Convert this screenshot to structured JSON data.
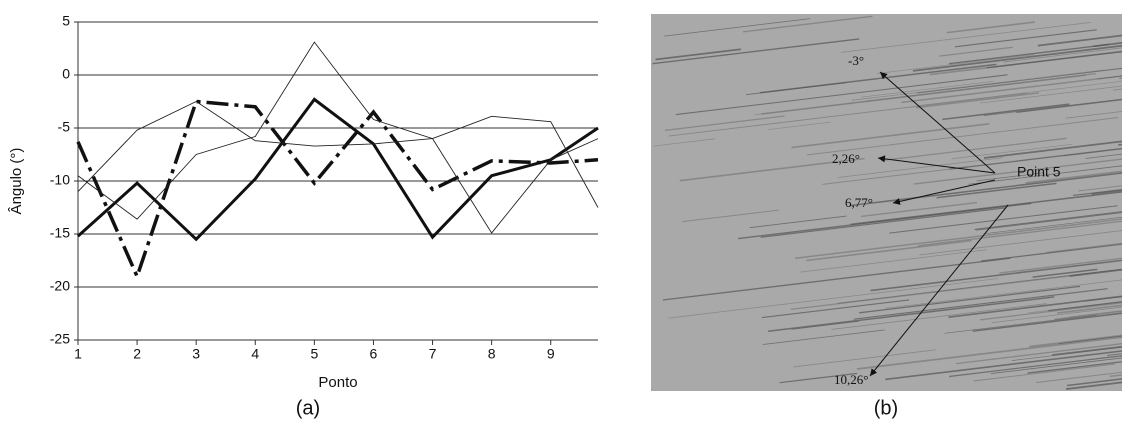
{
  "chart_data": {
    "type": "line",
    "x_label": "Ponto",
    "y_label": "Ângulo (°)",
    "x": [
      1,
      2,
      3,
      4,
      5,
      6,
      7,
      8,
      9,
      9.8
    ],
    "series": [
      {
        "color": "#111111",
        "style": "solid",
        "width": 3,
        "values": [
          -15.2,
          -10.2,
          -15.5,
          -9.8,
          -2.3,
          -6.5,
          -15.3,
          -9.5,
          -8,
          -5
        ]
      },
      {
        "color": "#111111",
        "style": "dashdot",
        "width": 3.5,
        "values": [
          -6.3,
          -19,
          -2.5,
          -3,
          -10.2,
          -3.5,
          -10.8,
          -8.1,
          -8.3,
          -8
        ]
      },
      {
        "color": "#222222",
        "style": "thin",
        "width": 0.9,
        "values": [
          -11,
          -5.2,
          -2.5,
          -6.2,
          -6.7,
          -6.5,
          -6,
          -3.9,
          -4.4,
          -12.5
        ]
      },
      {
        "color": "#222222",
        "style": "thin",
        "width": 0.9,
        "values": [
          -9.5,
          -13.6,
          -7.5,
          -5.8,
          3.1,
          -4.2,
          -6,
          -14.9,
          -8,
          -6
        ]
      }
    ],
    "xlim": [
      1,
      9.8
    ],
    "xticks": [
      1,
      2,
      3,
      4,
      5,
      6,
      7,
      8,
      9
    ],
    "ylim": [
      -25,
      5
    ],
    "yticks": [
      5,
      0,
      -5,
      -10,
      -15,
      -20,
      -25
    ],
    "grid": true
  },
  "figure": {
    "panel_a": "(a)",
    "panel_b": "(b)",
    "photo": {
      "angles": [
        "-3°",
        "2,26°",
        "6,77°",
        "10,26°"
      ],
      "callout": "Point 5"
    }
  }
}
